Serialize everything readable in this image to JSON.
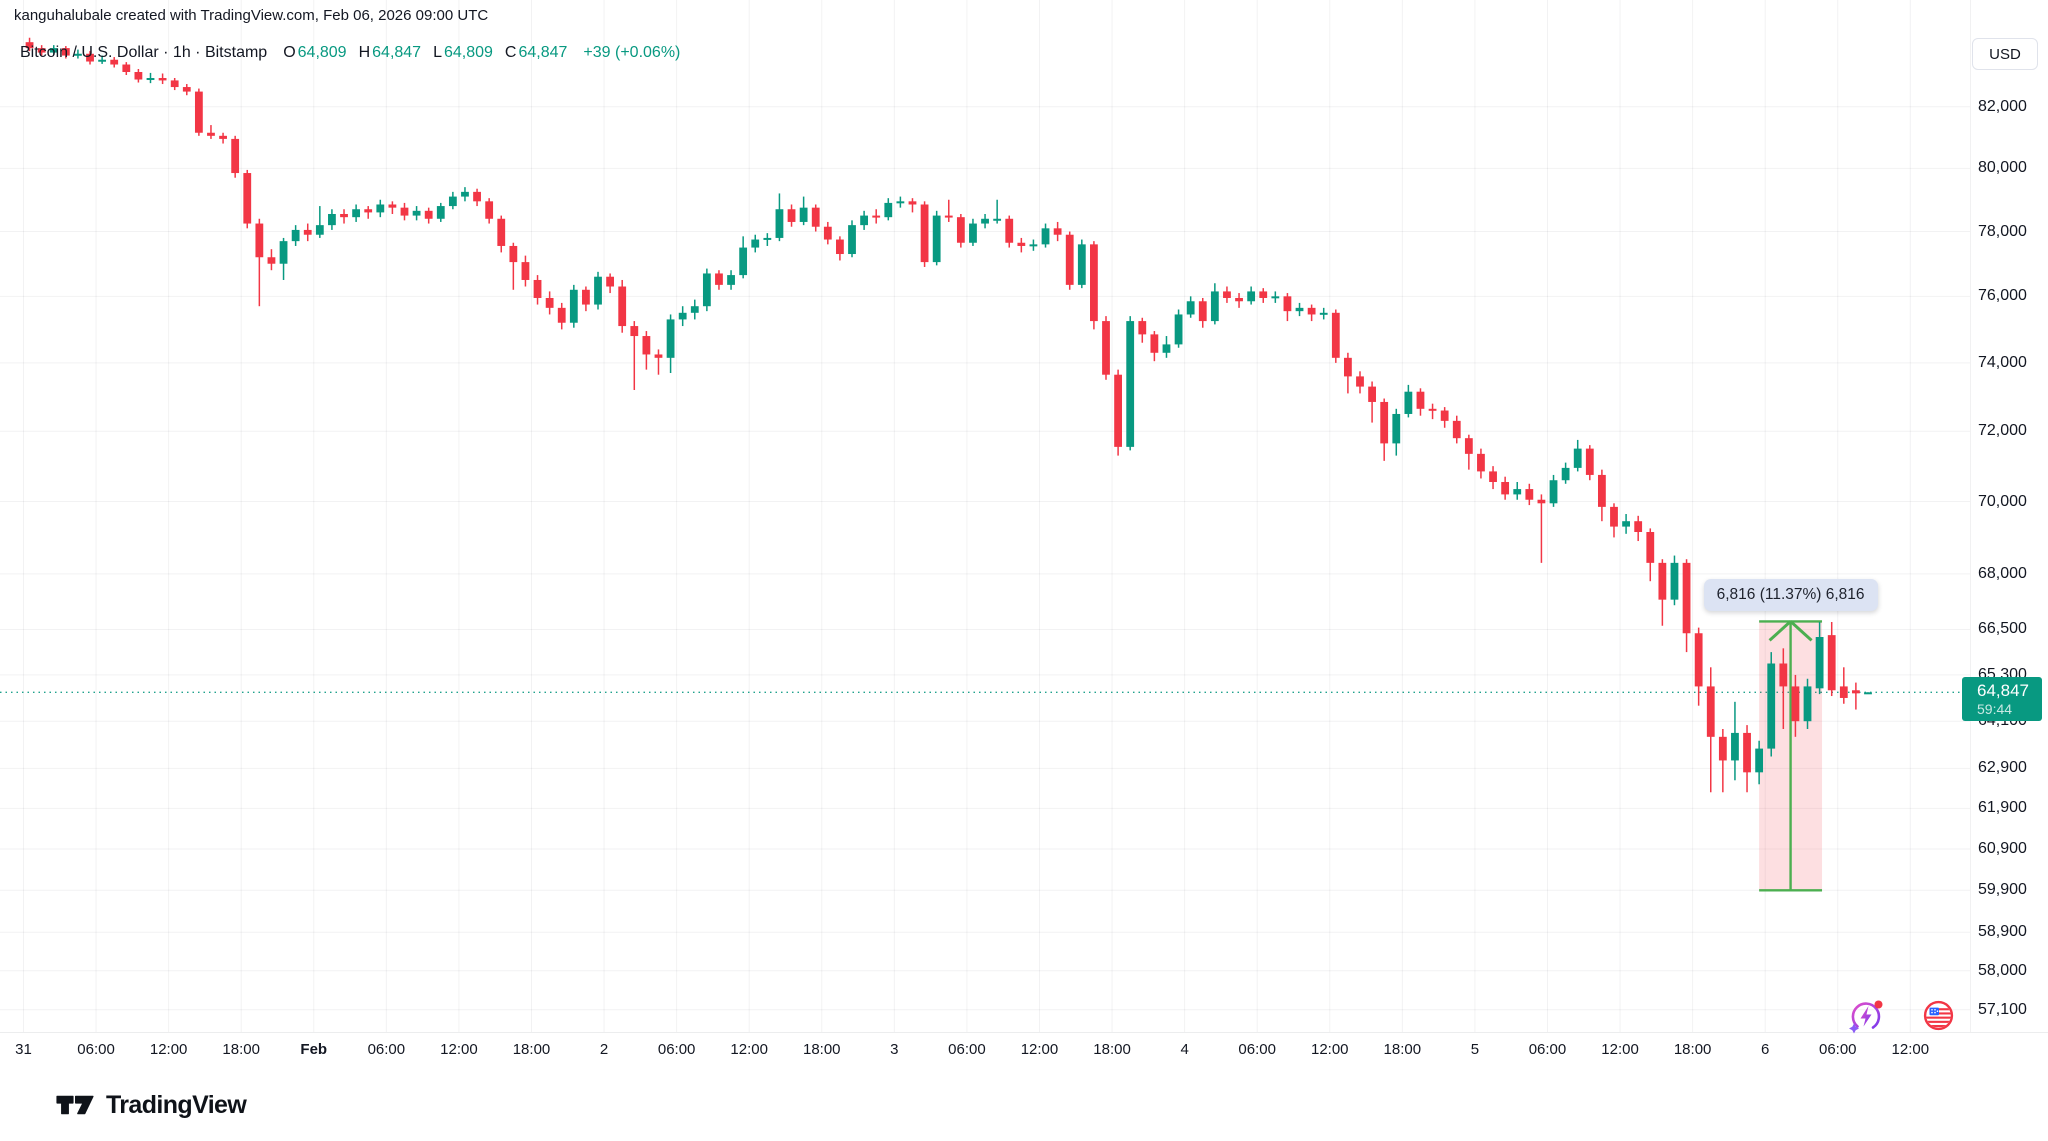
{
  "watermark": "kanguhalubale created with TradingView.com, Feb 06, 2026 09:00 UTC",
  "header": {
    "title": "Bitcoin / U.S. Dollar · 1h · Bitstamp",
    "ohlc": [
      {
        "label": "O",
        "value": "64,809"
      },
      {
        "label": "H",
        "value": "64,847"
      },
      {
        "label": "L",
        "value": "64,809"
      },
      {
        "label": "C",
        "value": "64,847"
      }
    ],
    "change": "+39 (+0.06%)"
  },
  "price_scale": {
    "currency": "USD",
    "labels": [
      {
        "text": "82,000",
        "value": 82000
      },
      {
        "text": "80,000",
        "value": 80000
      },
      {
        "text": "78,000",
        "value": 78000
      },
      {
        "text": "76,000",
        "value": 76000
      },
      {
        "text": "74,000",
        "value": 74000
      },
      {
        "text": "72,000",
        "value": 72000
      },
      {
        "text": "70,000",
        "value": 70000
      },
      {
        "text": "68,000",
        "value": 68000
      },
      {
        "text": "66,500",
        "value": 66500
      },
      {
        "text": "65,300",
        "value": 65300
      },
      {
        "text": "64,100",
        "value": 64100
      },
      {
        "text": "62,900",
        "value": 62900
      },
      {
        "text": "61,900",
        "value": 61900
      },
      {
        "text": "60,900",
        "value": 60900
      },
      {
        "text": "59,900",
        "value": 59900
      },
      {
        "text": "58,900",
        "value": 58900
      },
      {
        "text": "58,000",
        "value": 58000
      },
      {
        "text": "57,100",
        "value": 57100
      }
    ]
  },
  "time_scale": {
    "labels": [
      {
        "text": "31",
        "hour": 0,
        "kind": "day"
      },
      {
        "text": "06:00",
        "hour": 6,
        "kind": "time"
      },
      {
        "text": "12:00",
        "hour": 12,
        "kind": "time"
      },
      {
        "text": "18:00",
        "hour": 18,
        "kind": "time"
      },
      {
        "text": "Feb",
        "hour": 24,
        "kind": "month"
      },
      {
        "text": "06:00",
        "hour": 30,
        "kind": "time"
      },
      {
        "text": "12:00",
        "hour": 36,
        "kind": "time"
      },
      {
        "text": "18:00",
        "hour": 42,
        "kind": "time"
      },
      {
        "text": "2",
        "hour": 48,
        "kind": "day"
      },
      {
        "text": "06:00",
        "hour": 54,
        "kind": "time"
      },
      {
        "text": "12:00",
        "hour": 60,
        "kind": "time"
      },
      {
        "text": "18:00",
        "hour": 66,
        "kind": "time"
      },
      {
        "text": "3",
        "hour": 72,
        "kind": "day"
      },
      {
        "text": "06:00",
        "hour": 78,
        "kind": "time"
      },
      {
        "text": "12:00",
        "hour": 84,
        "kind": "time"
      },
      {
        "text": "18:00",
        "hour": 90,
        "kind": "time"
      },
      {
        "text": "4",
        "hour": 96,
        "kind": "day"
      },
      {
        "text": "06:00",
        "hour": 102,
        "kind": "time"
      },
      {
        "text": "12:00",
        "hour": 108,
        "kind": "time"
      },
      {
        "text": "18:00",
        "hour": 114,
        "kind": "time"
      },
      {
        "text": "5",
        "hour": 120,
        "kind": "day"
      },
      {
        "text": "06:00",
        "hour": 126,
        "kind": "time"
      },
      {
        "text": "12:00",
        "hour": 132,
        "kind": "time"
      },
      {
        "text": "18:00",
        "hour": 138,
        "kind": "time"
      },
      {
        "text": "6",
        "hour": 144,
        "kind": "day"
      },
      {
        "text": "06:00",
        "hour": 150,
        "kind": "time"
      },
      {
        "text": "12:00",
        "hour": 156,
        "kind": "time"
      }
    ]
  },
  "last_price": {
    "text": "64,847",
    "countdown": "59:44",
    "value": 64847
  },
  "measurement": {
    "text": "6,816 (11.37%) 6,816",
    "from_price": 59900,
    "to_price": 66716,
    "from_hour": 143.5,
    "to_hour": 148.7,
    "change_abs": 6816,
    "change_pct": 11.37
  },
  "footer": {
    "brand": "TradingView"
  },
  "icons": {
    "ai_button": "ai-lightning-icon",
    "calendar_button": "economic-calendar-flag-icon"
  },
  "colors": {
    "up": "#089981",
    "down": "#f23645",
    "text": "#131722",
    "grid": "rgba(19,23,34,0.055)",
    "measure_line": "#4caf50",
    "measure_fill": "rgba(242,54,69,0.16)",
    "tooltip_bg": "#dce3f3",
    "tooltip_text": "#1e222d",
    "price_line": "#089981"
  },
  "chart_data": {
    "type": "candlestick",
    "title": "Bitcoin / U.S. Dollar",
    "exchange": "Bitstamp",
    "interval": "1h",
    "y_scale": "logarithmic",
    "grid": true,
    "start_time": "2026-01-31 00:00 UTC",
    "end_time": "2026-02-06 09:00 UTC",
    "current_price": 64847,
    "current_bar": {
      "open": 64809,
      "high": 64847,
      "low": 64809,
      "close": 64847,
      "change": 39,
      "change_pct": 0.06
    },
    "y_ticks": [
      82000,
      80000,
      78000,
      76000,
      74000,
      72000,
      70000,
      68000,
      66500,
      65300,
      64100,
      62900,
      61900,
      60900,
      59900,
      58900,
      58000,
      57100
    ],
    "x_tick_hours": [
      0,
      6,
      12,
      18,
      24,
      30,
      36,
      42,
      48,
      54,
      60,
      66,
      72,
      78,
      84,
      90,
      96,
      102,
      108,
      114,
      120,
      126,
      132,
      138,
      144,
      150,
      156
    ],
    "candles_format": [
      "open",
      "high",
      "low",
      "close"
    ],
    "candles": [
      [
        84150,
        84300,
        83850,
        83950
      ],
      [
        83950,
        84050,
        83700,
        83800
      ],
      [
        83800,
        84050,
        83720,
        83950
      ],
      [
        83950,
        84020,
        83600,
        83700
      ],
      [
        83700,
        83900,
        83600,
        83760
      ],
      [
        83760,
        83850,
        83400,
        83500
      ],
      [
        83500,
        83700,
        83420,
        83560
      ],
      [
        83560,
        83650,
        83300,
        83400
      ],
      [
        83400,
        83480,
        83050,
        83150
      ],
      [
        83150,
        83250,
        82800,
        82900
      ],
      [
        82900,
        83120,
        82780,
        82950
      ],
      [
        82950,
        83100,
        82750,
        82870
      ],
      [
        82870,
        82950,
        82550,
        82650
      ],
      [
        82650,
        82750,
        82380,
        82500
      ],
      [
        82500,
        82600,
        81050,
        81150
      ],
      [
        81150,
        81400,
        80950,
        81050
      ],
      [
        81050,
        81150,
        80800,
        80950
      ],
      [
        80950,
        81050,
        79700,
        79850
      ],
      [
        79850,
        79950,
        78100,
        78250
      ],
      [
        78250,
        78400,
        75700,
        77200
      ],
      [
        77200,
        77450,
        76800,
        77000
      ],
      [
        77000,
        77800,
        76500,
        77700
      ],
      [
        77700,
        78200,
        77550,
        78050
      ],
      [
        78050,
        78250,
        77700,
        77900
      ],
      [
        77900,
        78800,
        77800,
        78200
      ],
      [
        78200,
        78700,
        78050,
        78550
      ],
      [
        78550,
        78700,
        78250,
        78450
      ],
      [
        78450,
        78850,
        78300,
        78700
      ],
      [
        78700,
        78800,
        78400,
        78600
      ],
      [
        78600,
        79000,
        78450,
        78850
      ],
      [
        78850,
        78950,
        78550,
        78750
      ],
      [
        78750,
        78900,
        78350,
        78500
      ],
      [
        78500,
        78800,
        78350,
        78650
      ],
      [
        78650,
        78750,
        78250,
        78400
      ],
      [
        78400,
        78900,
        78300,
        78800
      ],
      [
        78800,
        79250,
        78700,
        79100
      ],
      [
        79100,
        79400,
        78950,
        79250
      ],
      [
        79250,
        79350,
        78800,
        78950
      ],
      [
        78950,
        79050,
        78250,
        78400
      ],
      [
        78400,
        78500,
        77350,
        77550
      ],
      [
        77550,
        77650,
        76200,
        77050
      ],
      [
        77050,
        77250,
        76300,
        76500
      ],
      [
        76500,
        76650,
        75750,
        75950
      ],
      [
        75950,
        76150,
        75450,
        75650
      ],
      [
        75650,
        75800,
        75000,
        75200
      ],
      [
        75200,
        76350,
        75050,
        76200
      ],
      [
        76200,
        76300,
        75550,
        75750
      ],
      [
        75750,
        76750,
        75600,
        76600
      ],
      [
        76600,
        76700,
        76100,
        76300
      ],
      [
        76300,
        76500,
        74900,
        75100
      ],
      [
        75100,
        75250,
        73200,
        74800
      ],
      [
        74800,
        74950,
        73800,
        74250
      ],
      [
        74250,
        74400,
        73650,
        74150
      ],
      [
        74150,
        75450,
        73700,
        75300
      ],
      [
        75300,
        75700,
        75100,
        75500
      ],
      [
        75500,
        75900,
        75300,
        75700
      ],
      [
        75700,
        76850,
        75550,
        76700
      ],
      [
        76700,
        76800,
        76200,
        76350
      ],
      [
        76350,
        76800,
        76200,
        76650
      ],
      [
        76650,
        77850,
        76550,
        77500
      ],
      [
        77500,
        77900,
        77350,
        77750
      ],
      [
        77750,
        77950,
        77550,
        77800
      ],
      [
        77800,
        79200,
        77700,
        78700
      ],
      [
        78700,
        78850,
        78150,
        78300
      ],
      [
        78300,
        79100,
        78200,
        78750
      ],
      [
        78750,
        78850,
        78000,
        78150
      ],
      [
        78150,
        78300,
        77600,
        77750
      ],
      [
        77750,
        77850,
        77100,
        77300
      ],
      [
        77300,
        78350,
        77200,
        78200
      ],
      [
        78200,
        78650,
        78050,
        78500
      ],
      [
        78500,
        78700,
        78250,
        78450
      ],
      [
        78450,
        79050,
        78350,
        78900
      ],
      [
        78900,
        79100,
        78750,
        78950
      ],
      [
        78950,
        79050,
        78600,
        78850
      ],
      [
        78850,
        78950,
        76900,
        77050
      ],
      [
        77050,
        78650,
        76950,
        78500
      ],
      [
        78500,
        79000,
        78300,
        78450
      ],
      [
        78450,
        78550,
        77500,
        77650
      ],
      [
        77650,
        78400,
        77550,
        78250
      ],
      [
        78250,
        78550,
        78100,
        78400
      ],
      [
        78400,
        79000,
        78250,
        78400
      ],
      [
        78400,
        78500,
        77500,
        77650
      ],
      [
        77650,
        77800,
        77350,
        77550
      ],
      [
        77550,
        77750,
        77400,
        77600
      ],
      [
        77600,
        78250,
        77500,
        78100
      ],
      [
        78100,
        78300,
        77700,
        77900
      ],
      [
        77900,
        78000,
        76200,
        76350
      ],
      [
        76350,
        77750,
        76250,
        77600
      ],
      [
        77600,
        77700,
        75000,
        75250
      ],
      [
        75250,
        75400,
        73500,
        73650
      ],
      [
        73650,
        73800,
        71300,
        71550
      ],
      [
        71550,
        75400,
        71450,
        75250
      ],
      [
        75250,
        75350,
        74600,
        74850
      ],
      [
        74850,
        74950,
        74050,
        74300
      ],
      [
        74300,
        74800,
        74150,
        74550
      ],
      [
        74550,
        75600,
        74450,
        75450
      ],
      [
        75450,
        76000,
        75350,
        75850
      ],
      [
        75850,
        75950,
        75050,
        75250
      ],
      [
        75250,
        76400,
        75150,
        76150
      ],
      [
        76150,
        76300,
        75800,
        75950
      ],
      [
        75950,
        76100,
        75650,
        75850
      ],
      [
        75850,
        76300,
        75750,
        76150
      ],
      [
        76150,
        76250,
        75800,
        75950
      ],
      [
        75950,
        76150,
        75800,
        76000
      ],
      [
        76000,
        76100,
        75250,
        75550
      ],
      [
        75550,
        75800,
        75400,
        75650
      ],
      [
        75650,
        75750,
        75250,
        75450
      ],
      [
        75450,
        75650,
        75300,
        75500
      ],
      [
        75500,
        75600,
        74000,
        74150
      ],
      [
        74150,
        74300,
        73100,
        73600
      ],
      [
        73600,
        73750,
        73100,
        73300
      ],
      [
        73300,
        73450,
        72250,
        72850
      ],
      [
        72850,
        72950,
        71150,
        71650
      ],
      [
        71650,
        72650,
        71300,
        72500
      ],
      [
        72500,
        73350,
        72400,
        73150
      ],
      [
        73150,
        73250,
        72450,
        72650
      ],
      [
        72650,
        72800,
        72350,
        72600
      ],
      [
        72600,
        72700,
        72100,
        72300
      ],
      [
        72300,
        72450,
        71650,
        71800
      ],
      [
        71800,
        71900,
        70900,
        71350
      ],
      [
        71350,
        71500,
        70650,
        70850
      ],
      [
        70850,
        71000,
        70350,
        70550
      ],
      [
        70550,
        70700,
        70050,
        70200
      ],
      [
        70200,
        70550,
        70050,
        70350
      ],
      [
        70350,
        70500,
        69900,
        70050
      ],
      [
        70050,
        70200,
        68300,
        69950
      ],
      [
        69950,
        70750,
        69850,
        70600
      ],
      [
        70600,
        71100,
        70500,
        70950
      ],
      [
        70950,
        71750,
        70850,
        71500
      ],
      [
        71500,
        71600,
        70600,
        70750
      ],
      [
        70750,
        70900,
        69450,
        69850
      ],
      [
        69850,
        69950,
        69000,
        69300
      ],
      [
        69300,
        69650,
        69100,
        69450
      ],
      [
        69450,
        69600,
        68900,
        69150
      ],
      [
        69150,
        69250,
        67800,
        68300
      ],
      [
        68300,
        68400,
        66600,
        67300
      ],
      [
        67300,
        68500,
        67150,
        68300
      ],
      [
        68300,
        68400,
        65900,
        66400
      ],
      [
        66400,
        66550,
        64500,
        65000
      ],
      [
        65000,
        65500,
        62300,
        63700
      ],
      [
        63700,
        63900,
        62300,
        63100
      ],
      [
        63100,
        64600,
        62600,
        63800
      ],
      [
        63800,
        64000,
        62300,
        62800
      ],
      [
        62800,
        63600,
        62500,
        63400
      ],
      [
        63400,
        65900,
        63200,
        65600
      ],
      [
        65600,
        66000,
        63900,
        65000
      ],
      [
        65000,
        65300,
        63700,
        64100
      ],
      [
        64100,
        65200,
        63900,
        65000
      ],
      [
        64950,
        66700,
        64800,
        66300
      ],
      [
        66350,
        66700,
        64750,
        64900
      ],
      [
        65000,
        65500,
        64550,
        64700
      ],
      [
        64900,
        65100,
        64400,
        64820
      ],
      [
        64809,
        64847,
        64809,
        64847
      ]
    ]
  }
}
